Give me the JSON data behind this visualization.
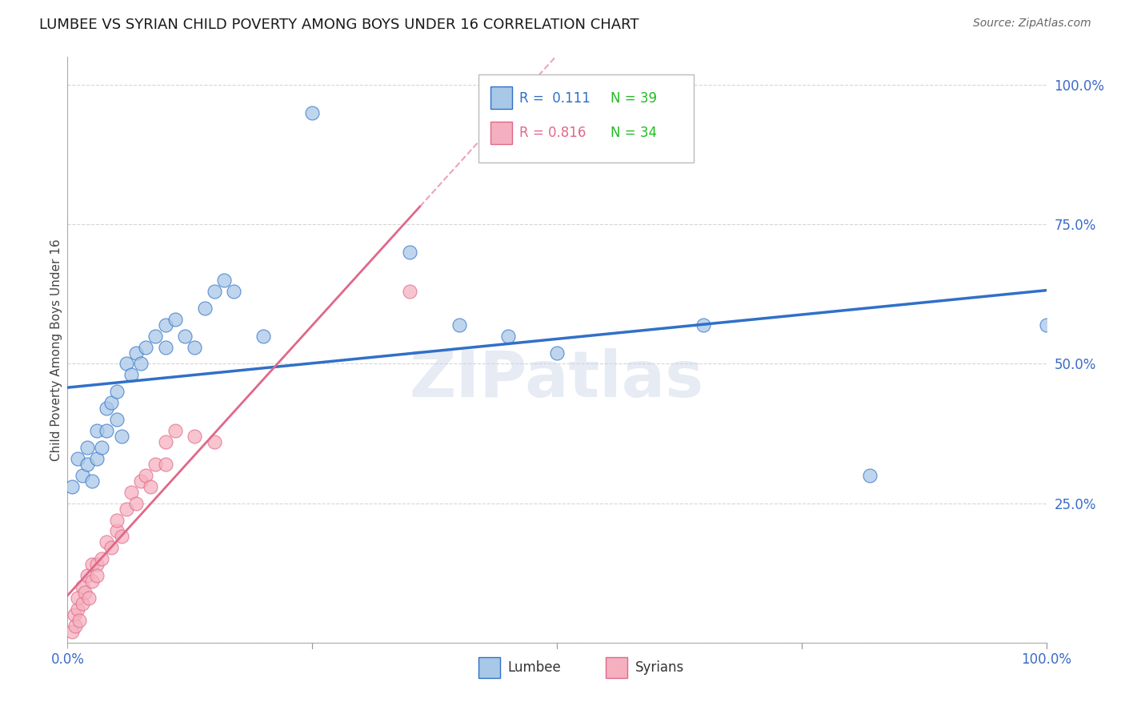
{
  "title": "LUMBEE VS SYRIAN CHILD POVERTY AMONG BOYS UNDER 16 CORRELATION CHART",
  "source": "Source: ZipAtlas.com",
  "ylabel": "Child Poverty Among Boys Under 16",
  "watermark": "ZIPatlas",
  "legend_r_lumbee": "0.111",
  "legend_n_lumbee": "39",
  "legend_r_syrians": "0.816",
  "legend_n_syrians": "34",
  "lumbee_color": "#a8c8e8",
  "syrians_color": "#f5b0c0",
  "lumbee_line_color": "#3070c8",
  "syrians_line_color": "#e06888",
  "lumbee_x": [
    0.005,
    0.01,
    0.015,
    0.02,
    0.02,
    0.025,
    0.03,
    0.03,
    0.035,
    0.04,
    0.04,
    0.045,
    0.05,
    0.05,
    0.055,
    0.06,
    0.065,
    0.07,
    0.075,
    0.08,
    0.09,
    0.1,
    0.1,
    0.11,
    0.12,
    0.13,
    0.14,
    0.15,
    0.16,
    0.17,
    0.2,
    0.25,
    0.35,
    0.4,
    0.45,
    0.5,
    0.65,
    0.82,
    1.0
  ],
  "lumbee_y": [
    0.28,
    0.33,
    0.3,
    0.35,
    0.32,
    0.29,
    0.33,
    0.38,
    0.35,
    0.42,
    0.38,
    0.43,
    0.4,
    0.45,
    0.37,
    0.5,
    0.48,
    0.52,
    0.5,
    0.53,
    0.55,
    0.53,
    0.57,
    0.58,
    0.55,
    0.53,
    0.6,
    0.63,
    0.65,
    0.63,
    0.55,
    0.95,
    0.7,
    0.57,
    0.55,
    0.52,
    0.57,
    0.3,
    0.57
  ],
  "syrians_x": [
    0.005,
    0.007,
    0.008,
    0.01,
    0.01,
    0.012,
    0.015,
    0.015,
    0.018,
    0.02,
    0.022,
    0.025,
    0.025,
    0.03,
    0.03,
    0.035,
    0.04,
    0.045,
    0.05,
    0.05,
    0.055,
    0.06,
    0.065,
    0.07,
    0.075,
    0.08,
    0.085,
    0.09,
    0.1,
    0.1,
    0.11,
    0.13,
    0.15,
    0.35
  ],
  "syrians_y": [
    0.02,
    0.05,
    0.03,
    0.06,
    0.08,
    0.04,
    0.07,
    0.1,
    0.09,
    0.12,
    0.08,
    0.14,
    0.11,
    0.14,
    0.12,
    0.15,
    0.18,
    0.17,
    0.2,
    0.22,
    0.19,
    0.24,
    0.27,
    0.25,
    0.29,
    0.3,
    0.28,
    0.32,
    0.32,
    0.36,
    0.38,
    0.37,
    0.36,
    0.63
  ],
  "xlim": [
    0.0,
    1.0
  ],
  "ylim": [
    0.0,
    1.05
  ],
  "xticks": [
    0.0,
    0.25,
    0.5,
    0.75,
    1.0
  ],
  "yticks": [
    0.0,
    0.25,
    0.5,
    0.75,
    1.0
  ],
  "xticklabels": [
    "0.0%",
    "",
    "",
    "",
    "100.0%"
  ],
  "yticklabels": [
    "",
    "25.0%",
    "50.0%",
    "75.0%",
    "100.0%"
  ],
  "background_color": "#ffffff",
  "grid_color": "#cccccc",
  "title_color": "#1a1a1a",
  "tick_color": "#3a6bc8"
}
